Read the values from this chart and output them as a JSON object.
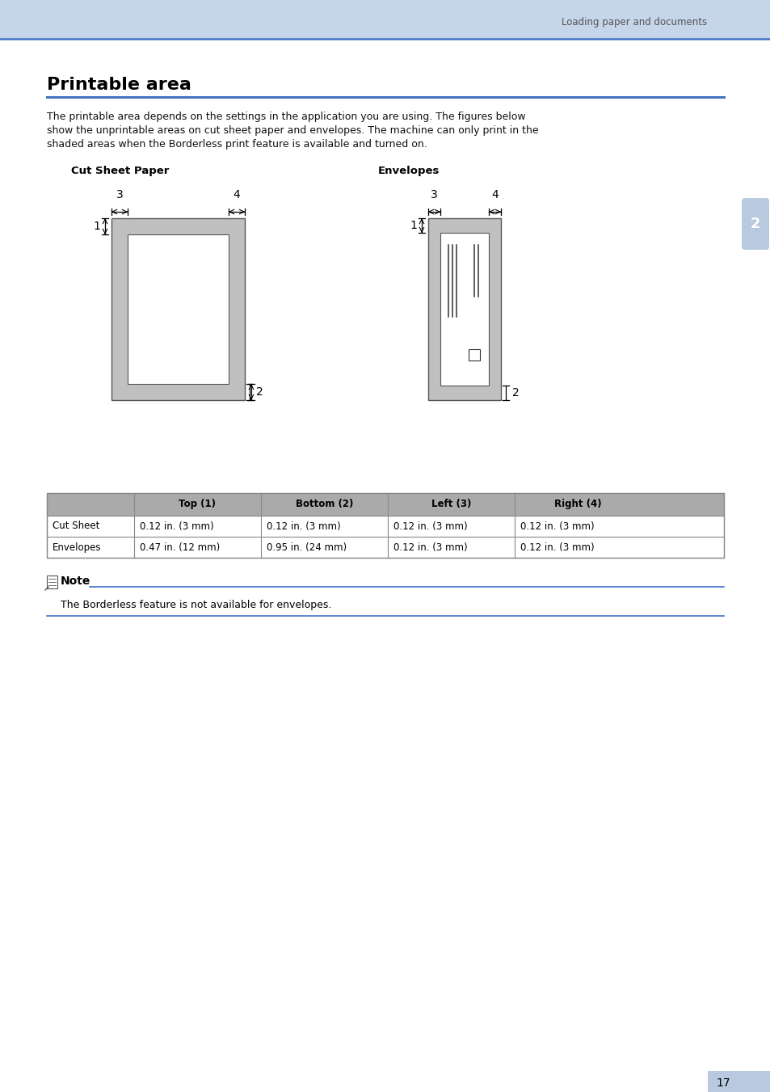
{
  "page_title": "Loading paper and documents",
  "header_bg": "#c5d5ea",
  "header_line_color": "#4472c4",
  "section_title": "Printable area",
  "section_title_line_color": "#4472c4",
  "body_text_lines": [
    "The printable area depends on the settings in the application you are using. The figures below",
    "show the unprintable areas on cut sheet paper and envelopes. The machine can only print in the",
    "shaded areas when the Borderless print feature is available and turned on."
  ],
  "diagram_label_left": "Cut Sheet Paper",
  "diagram_label_right": "Envelopes",
  "side_badge_text": "2",
  "side_badge_bg": "#b8c9e0",
  "paper_gray": "#c0c0c0",
  "paper_white": "#ffffff",
  "paper_border": "#555555",
  "table_header_bg": "#aaaaaa",
  "table_border": "#888888",
  "table_headers": [
    "",
    "Top (1)",
    "Bottom (2)",
    "Left (3)",
    "Right (4)"
  ],
  "table_row1": [
    "Cut Sheet",
    "0.12 in. (3 mm)",
    "0.12 in. (3 mm)",
    "0.12 in. (3 mm)",
    "0.12 in. (3 mm)"
  ],
  "table_row2": [
    "Envelopes",
    "0.47 in. (12 mm)",
    "0.95 in. (24 mm)",
    "0.12 in. (3 mm)",
    "0.12 in. (3 mm)"
  ],
  "note_text": "The Borderless feature is not available for envelopes.",
  "note_line_color": "#4472c4",
  "page_number": "17",
  "page_number_bg": "#b8c9e0",
  "bg_color": "#ffffff"
}
